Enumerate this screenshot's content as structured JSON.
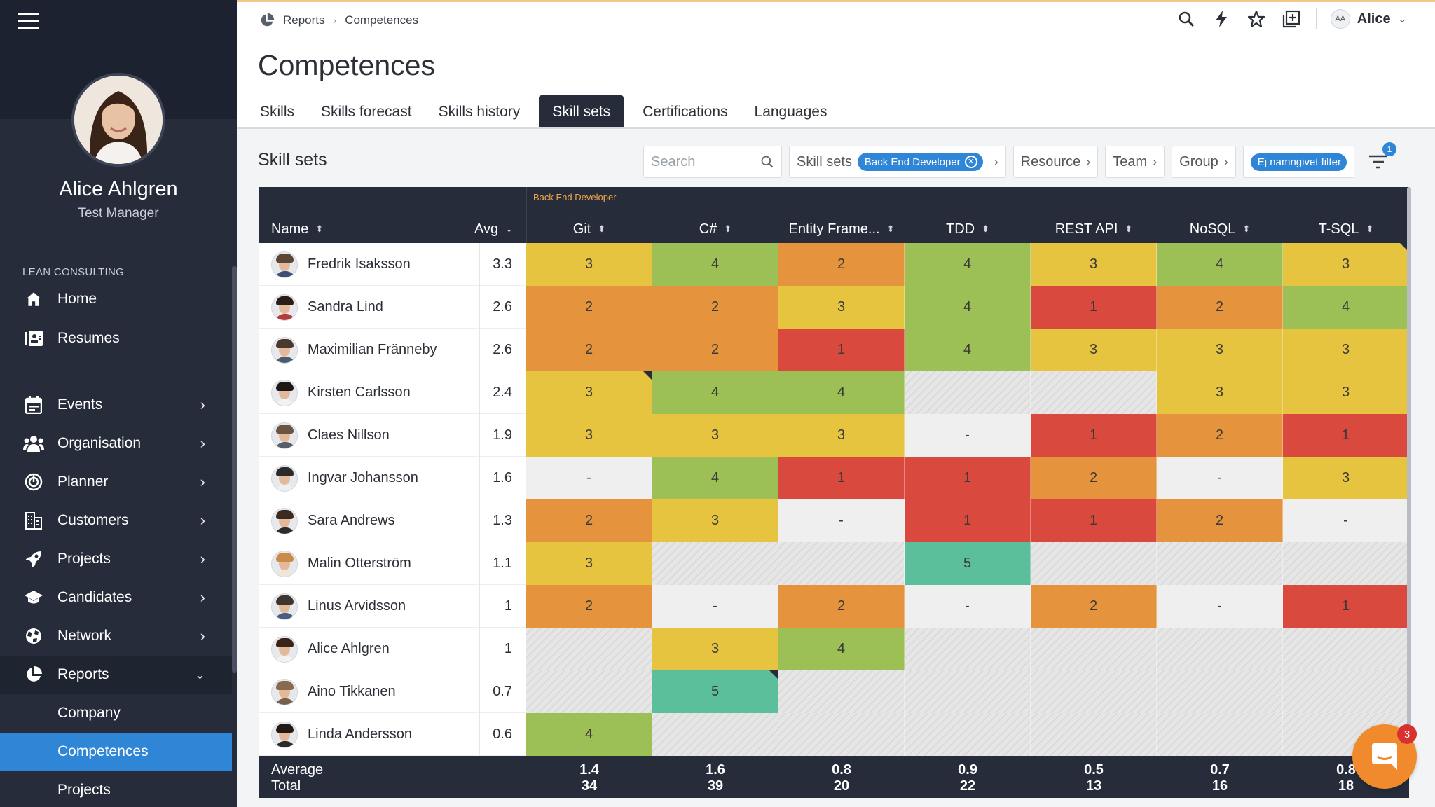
{
  "sidebar": {
    "user_name": "Alice Ahlgren",
    "user_role": "Test Manager",
    "section": "LEAN CONSULTING",
    "items": [
      {
        "label": "Home"
      },
      {
        "label": "Resumes"
      },
      {
        "label": "Events"
      },
      {
        "label": "Organisation"
      },
      {
        "label": "Planner"
      },
      {
        "label": "Customers"
      },
      {
        "label": "Projects"
      },
      {
        "label": "Candidates"
      },
      {
        "label": "Network"
      },
      {
        "label": "Reports"
      }
    ],
    "reports_sub": [
      {
        "label": "Company"
      },
      {
        "label": "Competences"
      },
      {
        "label": "Projects"
      }
    ]
  },
  "breadcrumb": {
    "root": "Reports",
    "current": "Competences"
  },
  "user": {
    "initials": "AA",
    "name": "Alice"
  },
  "page_title": "Competences",
  "tabs": [
    {
      "label": "Skills"
    },
    {
      "label": "Skills forecast"
    },
    {
      "label": "Skills history"
    },
    {
      "label": "Skill sets"
    },
    {
      "label": "Certifications"
    },
    {
      "label": "Languages"
    }
  ],
  "section_title": "Skill sets",
  "filters": {
    "search_placeholder": "Search",
    "skill_sets_label": "Skill sets",
    "skill_sets_value": "Back End Developer",
    "resource_label": "Resource",
    "team_label": "Team",
    "group_label": "Group",
    "saved_filter": "Ej namngivet filter",
    "filter_count": "1"
  },
  "table": {
    "group_label": "Back End Developer",
    "name_header": "Name",
    "avg_header": "Avg",
    "columns": [
      "Git",
      "C#",
      "Entity Frame...",
      "TDD",
      "REST API",
      "NoSQL",
      "T-SQL"
    ],
    "rows": [
      {
        "name": "Fredrik Isaksson",
        "avg": "3.3",
        "cells": [
          "3",
          "4",
          "2",
          "4",
          "3",
          "4",
          "3"
        ]
      },
      {
        "name": "Sandra Lind",
        "avg": "2.6",
        "cells": [
          "2",
          "2",
          "3",
          "4",
          "1",
          "2",
          "4"
        ]
      },
      {
        "name": "Maximilian Fränneby",
        "avg": "2.6",
        "cells": [
          "2",
          "2",
          "1",
          "4",
          "3",
          "3",
          "3"
        ]
      },
      {
        "name": "Kirsten Carlsson",
        "avg": "2.4",
        "cells": [
          "3",
          "4",
          "4",
          "",
          "",
          "3",
          "3"
        ]
      },
      {
        "name": "Claes Nillson",
        "avg": "1.9",
        "cells": [
          "3",
          "3",
          "3",
          "-",
          "1",
          "2",
          "1"
        ]
      },
      {
        "name": "Ingvar Johansson",
        "avg": "1.6",
        "cells": [
          "-",
          "4",
          "1",
          "1",
          "2",
          "-",
          "3"
        ]
      },
      {
        "name": "Sara Andrews",
        "avg": "1.3",
        "cells": [
          "2",
          "3",
          "-",
          "1",
          "1",
          "2",
          "-"
        ]
      },
      {
        "name": "Malin Otterström",
        "avg": "1.1",
        "cells": [
          "3",
          "",
          "",
          "5",
          "",
          "",
          ""
        ]
      },
      {
        "name": "Linus Arvidsson",
        "avg": "1",
        "cells": [
          "2",
          "-",
          "2",
          "-",
          "2",
          "-",
          "1"
        ]
      },
      {
        "name": "Alice Ahlgren",
        "avg": "1",
        "cells": [
          "",
          "3",
          "4",
          "",
          "",
          "",
          ""
        ]
      },
      {
        "name": "Aino Tikkanen",
        "avg": "0.7",
        "cells": [
          "",
          "5",
          "",
          "",
          "",
          "",
          ""
        ]
      },
      {
        "name": "Linda Andersson",
        "avg": "0.6",
        "cells": [
          "4",
          "",
          "",
          "",
          "",
          "",
          ""
        ]
      }
    ],
    "footer": {
      "average_label": "Average",
      "total_label": "Total",
      "averages": [
        "1.4",
        "1.6",
        "0.8",
        "0.9",
        "0.5",
        "0.7",
        "0.8"
      ],
      "totals": [
        "34",
        "39",
        "20",
        "22",
        "13",
        "16",
        "18"
      ]
    }
  },
  "chat_badge": "3",
  "colors": {
    "level_5": "#5cbf9b",
    "level_4": "#9cc055",
    "level_3": "#e7c440",
    "level_2": "#e5943d",
    "level_1": "#d9493d",
    "dash": "#efefef",
    "accent": "#2f86d6",
    "sidebar": "#262c3a"
  }
}
